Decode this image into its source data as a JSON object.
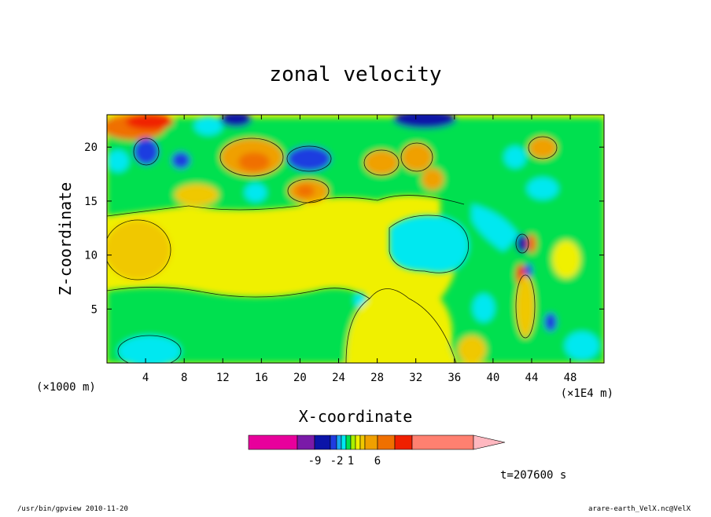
{
  "chart_data": {
    "type": "heatmap",
    "title": "zonal velocity",
    "xlabel": "X-coordinate",
    "ylabel": "Z-coordinate",
    "x_unit_left": "(×1000 m)",
    "x_unit_right": "(×1E4 m)",
    "xlim": [
      0,
      51.5
    ],
    "ylim": [
      0,
      23
    ],
    "x_ticks": [
      4,
      8,
      12,
      16,
      20,
      24,
      28,
      32,
      36,
      40,
      44,
      48
    ],
    "y_ticks": [
      5,
      10,
      15,
      20
    ],
    "colorbar": {
      "colors": [
        "#e8009c",
        "#7a1aa8",
        "#0b14a8",
        "#1f3ce0",
        "#19a6f0",
        "#00e8f0",
        "#00e050",
        "#a8f000",
        "#f0f000",
        "#f0c800",
        "#f0a000",
        "#f07000",
        "#f02000",
        "#ff8070",
        "#ffb8c0"
      ],
      "tick_labels": [
        "-9",
        "-2",
        "1",
        "6"
      ]
    },
    "time_label": "t=207600 s",
    "grid": false,
    "legend": "colorbar bottom-center"
  },
  "footer": {
    "left": "/usr/bin/gpview  2010-11-20",
    "right": "arare-earth_VelX.nc@VelX"
  }
}
